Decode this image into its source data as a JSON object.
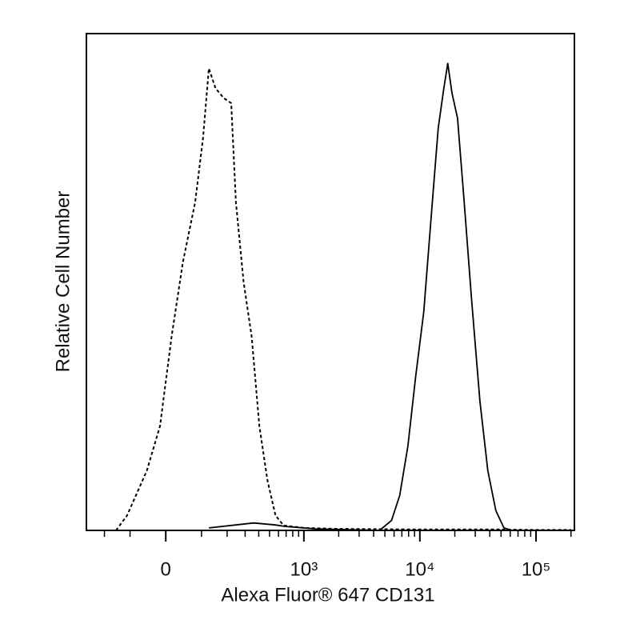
{
  "chart_data": {
    "type": "line",
    "xlabel": "Alexa Fluor® 647 CD131",
    "ylabel": "Relative Cell Number",
    "xscale": "biexponential",
    "xlim": [
      -300,
      214000
    ],
    "ylim": [
      0,
      100
    ],
    "xticks": [
      0,
      {
        "value": 1000,
        "label": "10³"
      },
      {
        "value": 10000,
        "label": "10⁴"
      },
      {
        "value": 100000,
        "label": "10⁵"
      }
    ],
    "xminorticks": [
      -200,
      -100,
      100,
      200,
      300,
      400,
      500,
      600,
      700,
      800,
      900,
      2000,
      3000,
      4000,
      5000,
      6000,
      7000,
      8000,
      9000,
      20000,
      30000,
      40000,
      50000,
      60000,
      70000,
      80000,
      90000,
      200000
    ],
    "series": [
      {
        "color": "#000000",
        "dashed": true,
        "x": [
          -150,
          -110,
          -50,
          -15,
          15,
          45,
          80,
          105,
          125,
          150,
          185,
          220,
          245,
          290,
          345,
          405,
          480,
          565,
          665,
          1000,
          2000,
          10000,
          50000,
          100000,
          200000
        ],
        "values": [
          0,
          3,
          12,
          21,
          39,
          54,
          66,
          79,
          93,
          89,
          87,
          86,
          66,
          50,
          39,
          21,
          10,
          3,
          1,
          0.5,
          0.3,
          0.2,
          0.2,
          0.1,
          0.1
        ]
      },
      {
        "color": "#000000",
        "dashed": false,
        "x": [
          125,
          360,
          565,
          680,
          1260,
          4500,
          5700,
          6700,
          7900,
          9200,
          10800,
          12700,
          14400,
          16100,
          17400,
          18900,
          21100,
          23900,
          28000,
          32900,
          38500,
          45100,
          52900,
          62000,
          200000
        ],
        "values": [
          0.5,
          1.5,
          1.1,
          0.8,
          0.3,
          0,
          2,
          7,
          17,
          31,
          44,
          65,
          81,
          89,
          94,
          88,
          83,
          67,
          46,
          26,
          12,
          4,
          0.5,
          0,
          0
        ]
      }
    ]
  }
}
